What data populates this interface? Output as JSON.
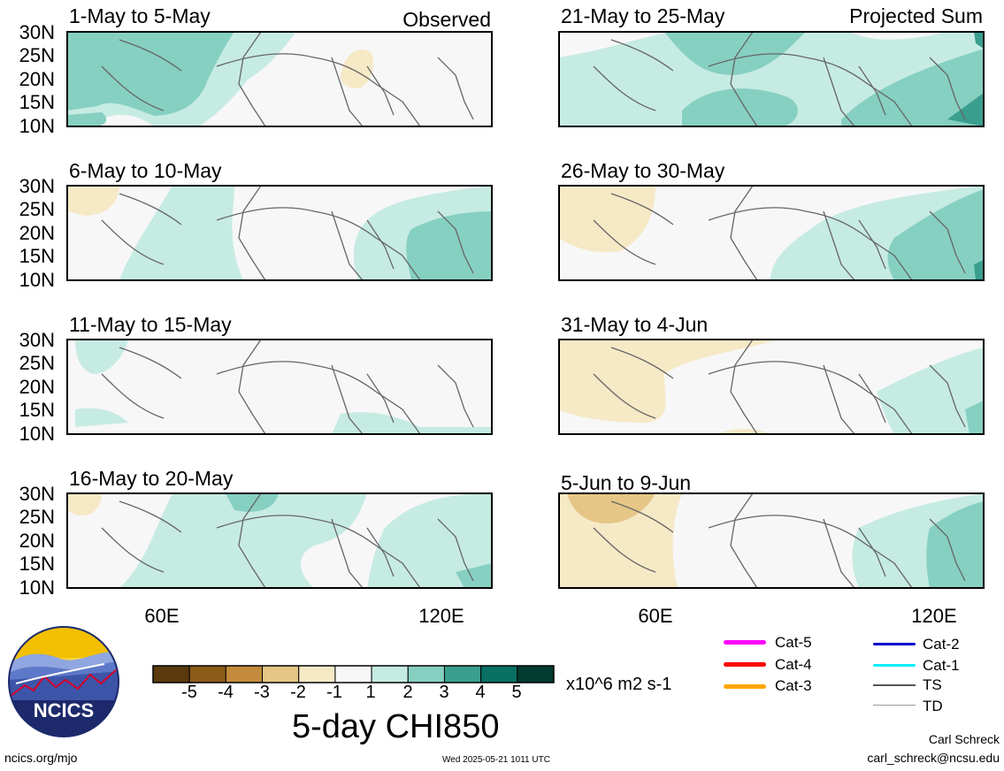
{
  "labels": {
    "observed": "Observed",
    "projected": "Projected Sum",
    "lat_ticks": [
      "30N",
      "25N",
      "20N",
      "15N",
      "10N"
    ],
    "lon_ticks": [
      "60E",
      "120E"
    ]
  },
  "panels": [
    {
      "id": "p1",
      "title": "1-May to 5-May",
      "side": "left",
      "row": 0
    },
    {
      "id": "p2",
      "title": "6-May to 10-May",
      "side": "left",
      "row": 1
    },
    {
      "id": "p3",
      "title": "11-May to 15-May",
      "side": "left",
      "row": 2
    },
    {
      "id": "p4",
      "title": "16-May to 20-May",
      "side": "left",
      "row": 3
    },
    {
      "id": "p5",
      "title": "21-May to 25-May",
      "side": "right",
      "row": 0
    },
    {
      "id": "p6",
      "title": "26-May to 30-May",
      "side": "right",
      "row": 1
    },
    {
      "id": "p7",
      "title": "31-May to 4-Jun",
      "side": "right",
      "row": 2
    },
    {
      "id": "p8",
      "title": "5-Jun to 9-Jun",
      "side": "right",
      "row": 3
    }
  ],
  "colorbar": {
    "colors": [
      "#5b3a0e",
      "#8c5b18",
      "#c38b3b",
      "#e5c687",
      "#f6e9c6",
      "#f7f7f7",
      "#c6ebe3",
      "#86d0c1",
      "#3a9f8e",
      "#0a6f64",
      "#003b30"
    ],
    "labels": [
      "-5",
      "-4",
      "-3",
      "-2",
      "-1",
      "1",
      "2",
      "3",
      "4",
      "5"
    ],
    "units": "x10^6 m2 s-1",
    "title": "5-day CHI850"
  },
  "legend": [
    {
      "label": "Cat-5",
      "color": "#ff00ff"
    },
    {
      "label": "Cat-4",
      "color": "#ff0000"
    },
    {
      "label": "Cat-3",
      "color": "#ffa500"
    },
    {
      "label": "Cat-2",
      "color": "#0000cc"
    },
    {
      "label": "Cat-1",
      "color": "#00eeff"
    },
    {
      "label": "TS",
      "color": "#555555"
    },
    {
      "label": "TD",
      "color": "#999999"
    }
  ],
  "logo": {
    "text": "NCICS"
  },
  "footer": {
    "left": "ncics.org/mjo",
    "center": "Wed 2025-05-21 1011 UTC",
    "author": "Carl Schreck",
    "email": "carl_schreck@ncsu.edu"
  }
}
